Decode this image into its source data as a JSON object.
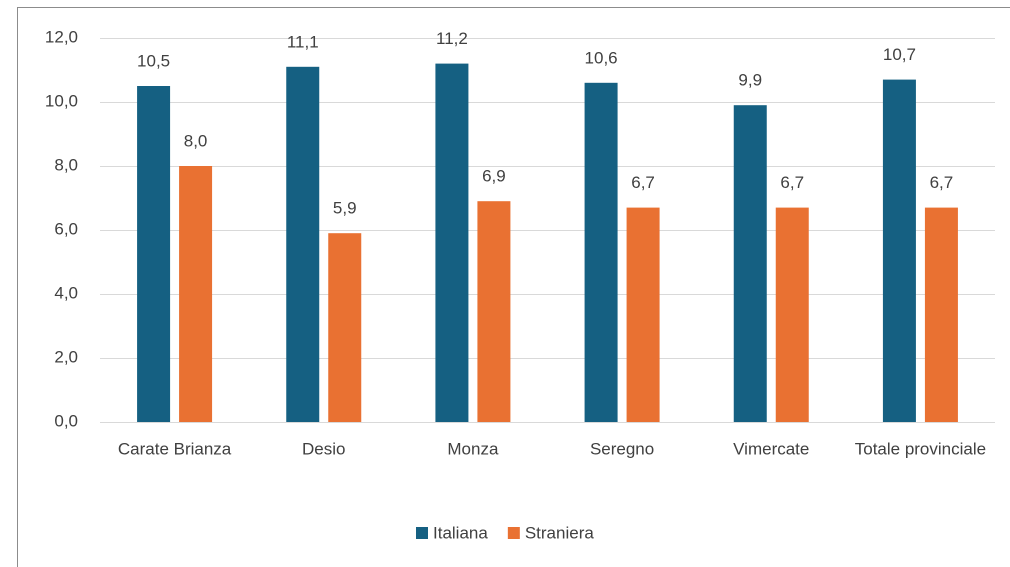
{
  "chart_data": {
    "type": "bar",
    "categories": [
      "Carate Brianza",
      "Desio",
      "Monza",
      "Seregno",
      "Vimercate",
      "Totale provinciale"
    ],
    "series": [
      {
        "name": "Italiana",
        "color": "#156082",
        "values": [
          10.5,
          11.1,
          11.2,
          10.6,
          9.9,
          10.7
        ],
        "value_labels": [
          "10,5",
          "11,1",
          "11,2",
          "10,6",
          "9,9",
          "10,7"
        ]
      },
      {
        "name": "Straniera",
        "color": "#e97132",
        "values": [
          8.0,
          5.9,
          6.9,
          6.7,
          6.7,
          6.7
        ],
        "value_labels": [
          "8,0",
          "5,9",
          "6,9",
          "6,7",
          "6,7",
          "6,7"
        ]
      }
    ],
    "ylim": [
      0,
      12
    ],
    "yticks": [
      {
        "value": 0,
        "label": "0,0"
      },
      {
        "value": 2,
        "label": "2,0"
      },
      {
        "value": 4,
        "label": "4,0"
      },
      {
        "value": 6,
        "label": "6,0"
      },
      {
        "value": 8,
        "label": "8,0"
      },
      {
        "value": 10,
        "label": "10,0"
      },
      {
        "value": 12,
        "label": "12,0"
      }
    ],
    "grid": true,
    "legend": "bottom"
  }
}
